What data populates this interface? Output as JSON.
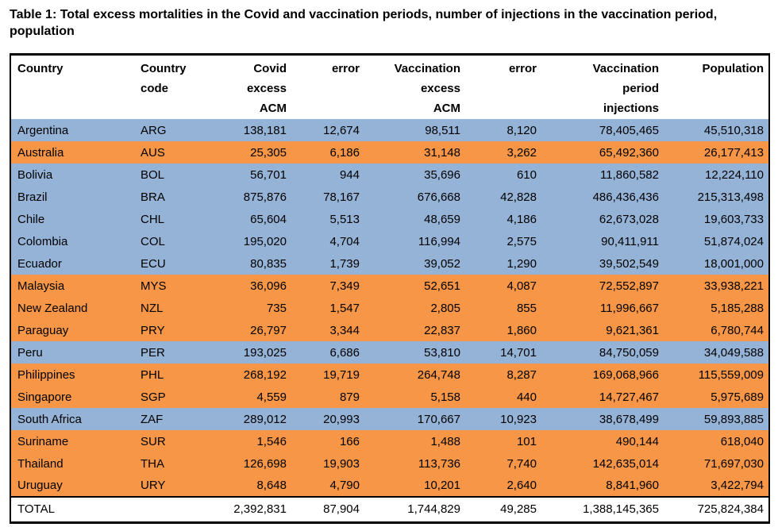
{
  "title": "Table 1: Total excess mortalities in the Covid and vaccination periods, number of injections in the vaccination period, population",
  "colors": {
    "row_blue": "#95B3D7",
    "row_orange": "#F79646",
    "header_bg": "#FFFFFF",
    "total_bg": "#FFFFFF",
    "border": "#000000",
    "text": "#000000"
  },
  "table": {
    "column_keys": [
      "country",
      "country-code",
      "covid-excess-acm",
      "covid-error",
      "vaccination-excess-acm",
      "vaccination-error",
      "vaccination-period-injections",
      "population"
    ],
    "header": {
      "cells": [
        {
          "lines": [
            "Country"
          ],
          "align": "left"
        },
        {
          "lines": [
            "Country",
            "code"
          ],
          "align": "left"
        },
        {
          "lines": [
            "Covid",
            "excess",
            "ACM"
          ],
          "align": "right"
        },
        {
          "lines": [
            "error"
          ],
          "align": "right"
        },
        {
          "lines": [
            "Vaccination",
            "excess",
            "ACM"
          ],
          "align": "right"
        },
        {
          "lines": [
            "error"
          ],
          "align": "right"
        },
        {
          "lines": [
            "Vaccination",
            "period",
            "injections"
          ],
          "align": "right"
        },
        {
          "lines": [
            "Population"
          ],
          "align": "right"
        }
      ]
    },
    "rows": [
      {
        "color": "blue",
        "cells": [
          "Argentina",
          "ARG",
          "138,181",
          "12,674",
          "98,511",
          "8,120",
          "78,405,465",
          "45,510,318"
        ]
      },
      {
        "color": "orange",
        "cells": [
          "Australia",
          "AUS",
          "25,305",
          "6,186",
          "31,148",
          "3,262",
          "65,492,360",
          "26,177,413"
        ]
      },
      {
        "color": "blue",
        "cells": [
          "Bolivia",
          "BOL",
          "56,701",
          "944",
          "35,696",
          "610",
          "11,860,582",
          "12,224,110"
        ]
      },
      {
        "color": "blue",
        "cells": [
          "Brazil",
          "BRA",
          "875,876",
          "78,167",
          "676,668",
          "42,828",
          "486,436,436",
          "215,313,498"
        ]
      },
      {
        "color": "blue",
        "cells": [
          "Chile",
          "CHL",
          "65,604",
          "5,513",
          "48,659",
          "4,186",
          "62,673,028",
          "19,603,733"
        ]
      },
      {
        "color": "blue",
        "cells": [
          "Colombia",
          "COL",
          "195,020",
          "4,704",
          "116,994",
          "2,575",
          "90,411,911",
          "51,874,024"
        ]
      },
      {
        "color": "blue",
        "cells": [
          "Ecuador",
          "ECU",
          "80,835",
          "1,739",
          "39,052",
          "1,290",
          "39,502,549",
          "18,001,000"
        ]
      },
      {
        "color": "orange",
        "cells": [
          "Malaysia",
          "MYS",
          "36,096",
          "7,349",
          "52,651",
          "4,087",
          "72,552,897",
          "33,938,221"
        ]
      },
      {
        "color": "orange",
        "cells": [
          "New Zealand",
          "NZL",
          "735",
          "1,547",
          "2,805",
          "855",
          "11,996,667",
          "5,185,288"
        ]
      },
      {
        "color": "orange",
        "cells": [
          "Paraguay",
          "PRY",
          "26,797",
          "3,344",
          "22,837",
          "1,860",
          "9,621,361",
          "6,780,744"
        ]
      },
      {
        "color": "blue",
        "cells": [
          "Peru",
          "PER",
          "193,025",
          "6,686",
          "53,810",
          "14,701",
          "84,750,059",
          "34,049,588"
        ]
      },
      {
        "color": "orange",
        "cells": [
          "Philippines",
          "PHL",
          "268,192",
          "19,719",
          "264,748",
          "8,287",
          "169,068,966",
          "115,559,009"
        ]
      },
      {
        "color": "orange",
        "cells": [
          "Singapore",
          "SGP",
          "4,559",
          "879",
          "5,158",
          "440",
          "14,727,467",
          "5,975,689"
        ]
      },
      {
        "color": "blue",
        "cells": [
          "South Africa",
          "ZAF",
          "289,012",
          "20,993",
          "170,667",
          "10,923",
          "38,678,499",
          "59,893,885"
        ]
      },
      {
        "color": "orange",
        "cells": [
          "Suriname",
          "SUR",
          "1,546",
          "166",
          "1,488",
          "101",
          "490,144",
          "618,040"
        ]
      },
      {
        "color": "orange",
        "cells": [
          "Thailand",
          "THA",
          "126,698",
          "19,903",
          "113,736",
          "7,740",
          "142,635,014",
          "71,697,030"
        ]
      },
      {
        "color": "orange",
        "cells": [
          "Uruguay",
          "URY",
          "8,648",
          "4,790",
          "10,201",
          "2,640",
          "8,841,960",
          "3,422,794"
        ]
      }
    ],
    "total_row": {
      "cells": [
        "TOTAL",
        "",
        "2,392,831",
        "87,904",
        "1,744,829",
        "49,285",
        "1,388,145,365",
        "725,824,384"
      ]
    }
  }
}
